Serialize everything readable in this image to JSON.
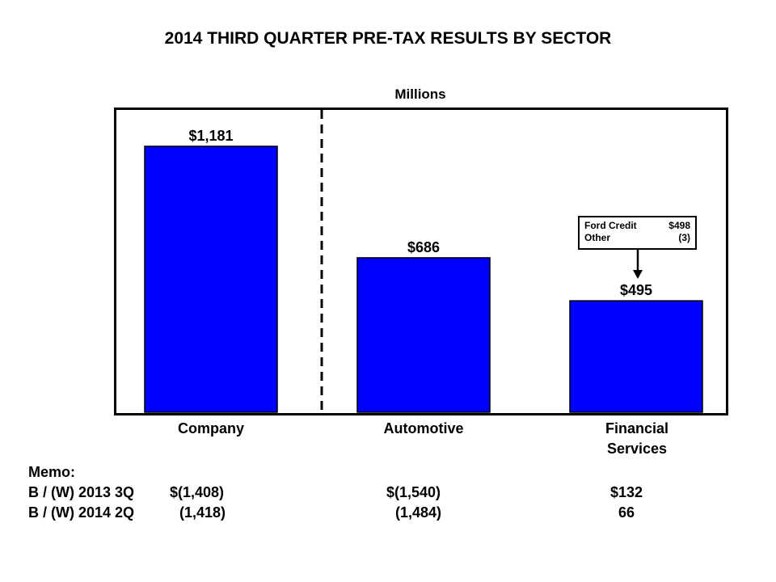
{
  "chart_data": {
    "type": "bar",
    "title": "2014 THIRD QUARTER PRE-TAX RESULTS BY SECTOR",
    "subtitle": "Millions",
    "categories": [
      "Company",
      "Automotive",
      "Financial Services"
    ],
    "category_lines": [
      [
        "Company"
      ],
      [
        "Automotive"
      ],
      [
        "Financial",
        "Services"
      ]
    ],
    "values": [
      1181,
      686,
      495
    ],
    "data_labels": [
      "$1,181",
      "$686",
      "$495"
    ],
    "bar_color": "#0000ff",
    "ylim": [
      0,
      1400
    ],
    "divider": "dashed line between Company and Automotive",
    "callout": {
      "rows": [
        {
          "label": "Ford Credit",
          "value": "$498"
        },
        {
          "label": "Other",
          "value": "(3)"
        }
      ]
    }
  },
  "memo": {
    "heading": "Memo:",
    "rows": [
      {
        "label": "B / (W) 2013 3Q",
        "company": "$(1,408)",
        "automotive": "$(1,540)",
        "financial": "$132"
      },
      {
        "label": "B / (W) 2014 2Q",
        "company": "(1,418)",
        "automotive": "(1,484)",
        "financial": "66"
      }
    ]
  }
}
